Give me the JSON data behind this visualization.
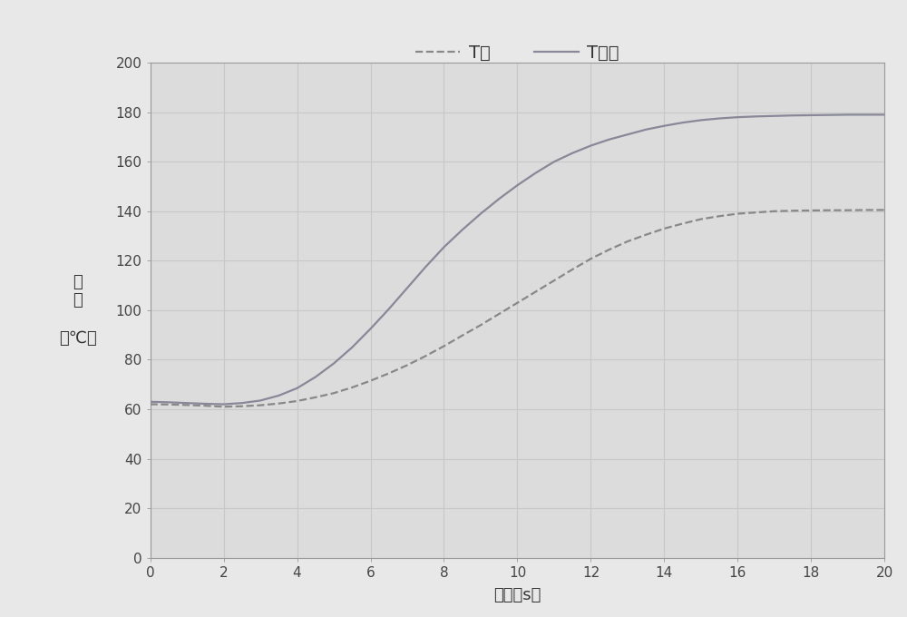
{
  "title": "",
  "xlabel": "时间（s）",
  "ylabel_lines": [
    "温",
    "度",
    "",
    "（℃）"
  ],
  "xlim": [
    0,
    20
  ],
  "ylim": [
    0,
    200
  ],
  "xticks": [
    0,
    2,
    4,
    6,
    8,
    10,
    12,
    14,
    16,
    18,
    20
  ],
  "yticks": [
    0,
    20,
    40,
    60,
    80,
    100,
    120,
    140,
    160,
    180,
    200
  ],
  "background_color": "#e8e8e8",
  "axes_facecolor": "#dcdcdc",
  "grid_color": "#c8c8c8",
  "line_dashed_color": "#888888",
  "line_solid_color": "#888899",
  "t_x": [
    0,
    0.5,
    1.0,
    1.5,
    2.0,
    2.5,
    3.0,
    3.5,
    4.0,
    4.5,
    5.0,
    5.5,
    6.0,
    6.5,
    7.0,
    7.5,
    8.0,
    8.5,
    9.0,
    9.5,
    10.0,
    10.5,
    11.0,
    11.5,
    12.0,
    12.5,
    13.0,
    13.5,
    14.0,
    14.5,
    15.0,
    15.5,
    16.0,
    16.5,
    17.0,
    17.5,
    18.0,
    18.5,
    19.0,
    19.5,
    20.0
  ],
  "y_dashed": [
    62,
    61.9,
    61.7,
    61.4,
    61.0,
    61.2,
    61.6,
    62.3,
    63.3,
    64.8,
    66.5,
    68.8,
    71.5,
    74.5,
    77.8,
    81.5,
    85.5,
    89.8,
    94.0,
    98.5,
    103.0,
    107.5,
    112.0,
    116.5,
    120.8,
    124.5,
    127.8,
    130.5,
    133.0,
    135.0,
    136.8,
    138.0,
    139.0,
    139.5,
    140.0,
    140.2,
    140.3,
    140.4,
    140.4,
    140.5,
    140.5
  ],
  "y_solid": [
    63,
    62.8,
    62.5,
    62.2,
    62.0,
    62.5,
    63.5,
    65.5,
    68.5,
    73.0,
    78.5,
    85.0,
    92.5,
    100.5,
    109.0,
    117.5,
    125.5,
    132.5,
    139.0,
    145.0,
    150.5,
    155.5,
    160.0,
    163.5,
    166.5,
    169.0,
    171.0,
    173.0,
    174.5,
    175.8,
    176.8,
    177.5,
    178.0,
    178.3,
    178.5,
    178.7,
    178.8,
    178.9,
    179.0,
    179.0,
    179.0
  ]
}
